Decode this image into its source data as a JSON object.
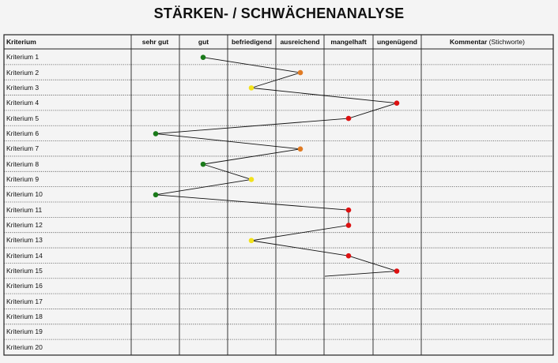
{
  "title": "STÄRKEN- / SCHWÄCHENANALYSE",
  "columns": {
    "criterion": "Kriterium",
    "ratings": [
      "sehr gut",
      "gut",
      "befriedigend",
      "ausreichend",
      "mangelhaft",
      "ungenügend"
    ],
    "comment": "Kommentar",
    "comment_hint": "(Stichworte)"
  },
  "criteria": [
    {
      "label": "Kriterium 1",
      "rating": "gut"
    },
    {
      "label": "Kriterium 2",
      "rating": "ausreichend"
    },
    {
      "label": "Kriterium 3",
      "rating": "befriedigend"
    },
    {
      "label": "Kriterium 4",
      "rating": "ungenügend"
    },
    {
      "label": "Kriterium 5",
      "rating": "mangelhaft"
    },
    {
      "label": "Kriterium 6",
      "rating": "sehr gut"
    },
    {
      "label": "Kriterium 7",
      "rating": "ausreichend"
    },
    {
      "label": "Kriterium 8",
      "rating": "gut"
    },
    {
      "label": "Kriterium 9",
      "rating": "befriedigend"
    },
    {
      "label": "Kriterium 10",
      "rating": "sehr gut"
    },
    {
      "label": "Kriterium 11",
      "rating": "mangelhaft"
    },
    {
      "label": "Kriterium 12",
      "rating": "mangelhaft"
    },
    {
      "label": "Kriterium 13",
      "rating": "befriedigend"
    },
    {
      "label": "Kriterium 14",
      "rating": "mangelhaft"
    },
    {
      "label": "Kriterium 15",
      "rating": "ungenügend"
    },
    {
      "label": "Kriterium 16",
      "rating": null
    },
    {
      "label": "Kriterium 17",
      "rating": null
    },
    {
      "label": "Kriterium 18",
      "rating": null
    },
    {
      "label": "Kriterium 19",
      "rating": null
    },
    {
      "label": "Kriterium 20",
      "rating": null
    }
  ],
  "rating_colors": {
    "sehr gut": "#1a7a1a",
    "gut": "#1a7a1a",
    "befriedigend": "#f2e21c",
    "ausreichend": "#e07b24",
    "mangelhaft": "#dd1111",
    "ungenügend": "#dd1111"
  }
}
